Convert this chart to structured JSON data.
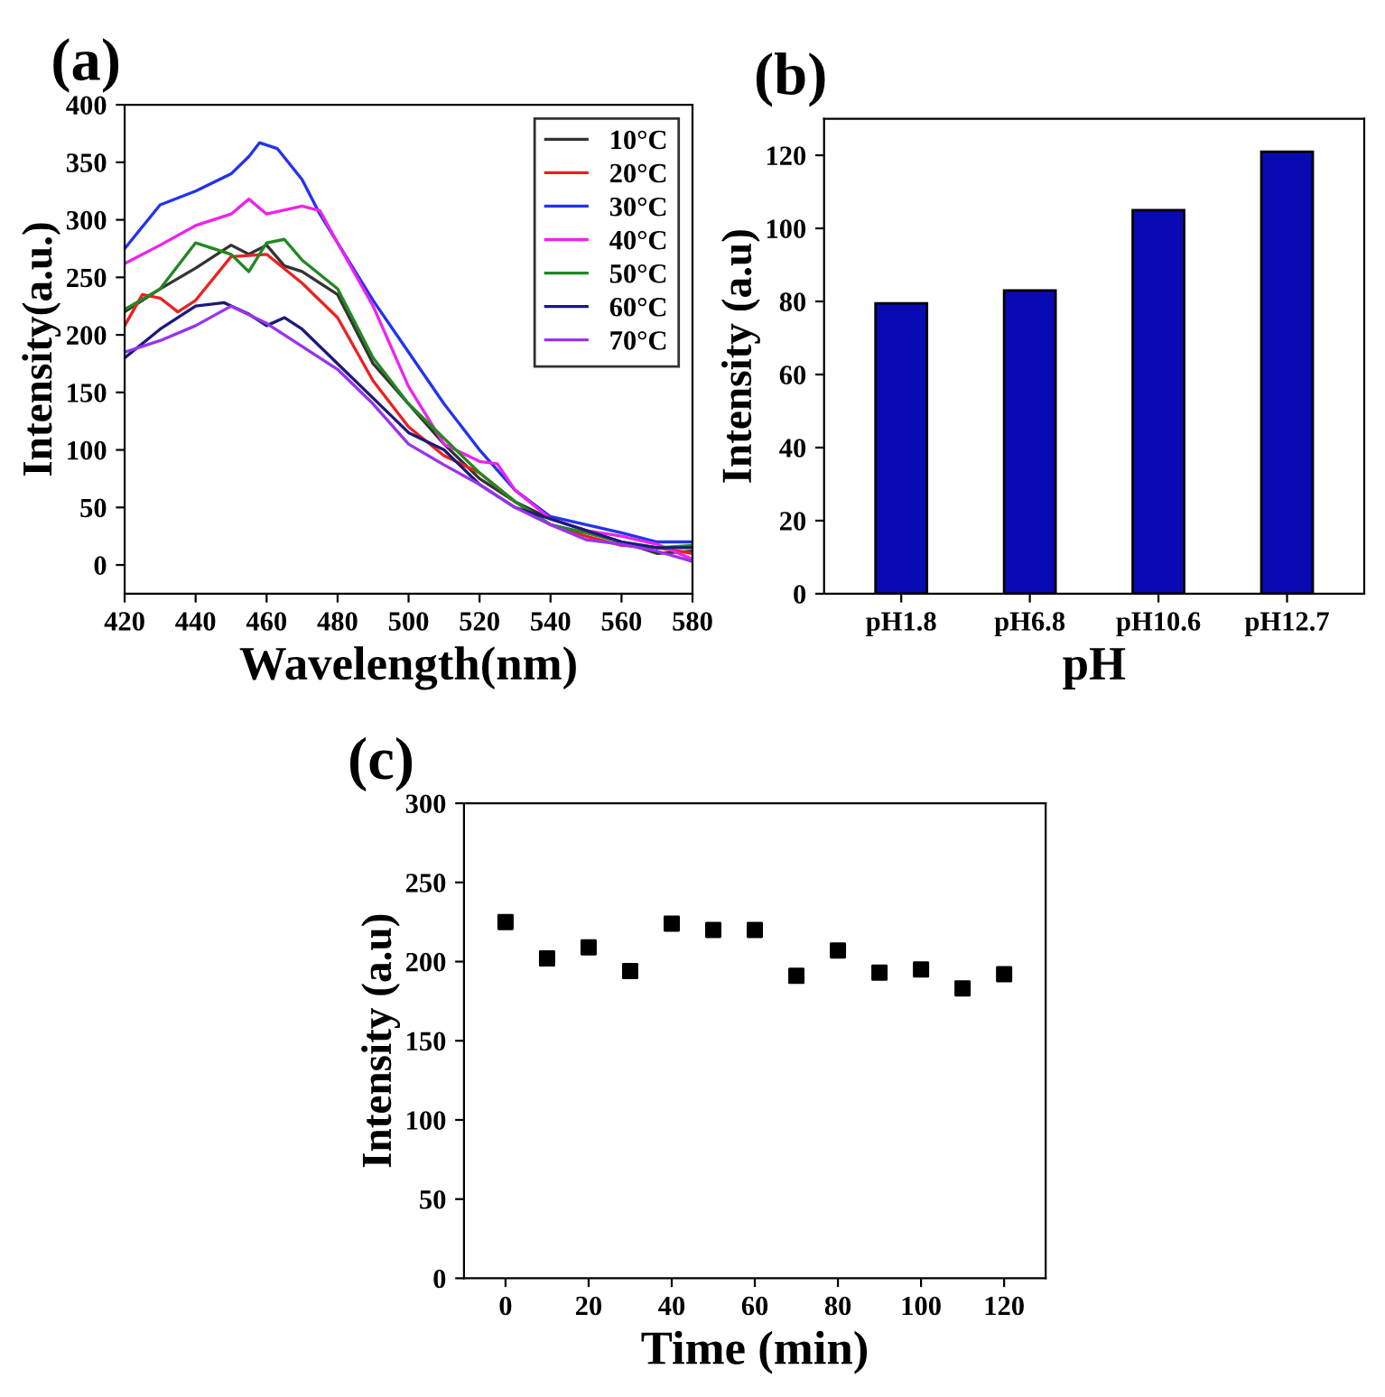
{
  "chart_data": [
    {
      "type": "line",
      "title": "(a)",
      "xlabel": "Wavelength(nm)",
      "ylabel": "Intensity(a.u.)",
      "xlim": [
        420,
        580
      ],
      "ylim": [
        -25,
        400
      ],
      "xticks": [
        420,
        440,
        460,
        480,
        500,
        520,
        540,
        560,
        580
      ],
      "yticks": [
        0,
        50,
        100,
        150,
        200,
        250,
        300,
        350,
        400
      ],
      "legend": "top right",
      "grid": false,
      "series": [
        {
          "name": "10°C",
          "color": "#333333",
          "x": [
            420,
            430,
            440,
            450,
            455,
            460,
            465,
            470,
            480,
            490,
            500,
            510,
            520,
            530,
            540,
            550,
            560,
            570,
            580
          ],
          "values": [
            220,
            240,
            258,
            278,
            270,
            278,
            260,
            255,
            235,
            175,
            140,
            105,
            75,
            55,
            40,
            30,
            20,
            10,
            12
          ]
        },
        {
          "name": "20°C",
          "color": "#ee2020",
          "x": [
            420,
            425,
            430,
            435,
            440,
            450,
            460,
            470,
            480,
            490,
            500,
            510,
            520,
            530,
            540,
            550,
            560,
            570,
            580
          ],
          "values": [
            208,
            235,
            232,
            220,
            230,
            268,
            270,
            245,
            215,
            160,
            120,
            95,
            80,
            55,
            35,
            25,
            17,
            15,
            10
          ]
        },
        {
          "name": "30°C",
          "color": "#2233ee",
          "x": [
            420,
            430,
            440,
            450,
            455,
            458,
            463,
            470,
            475,
            480,
            490,
            500,
            510,
            520,
            530,
            540,
            550,
            560,
            570,
            580
          ],
          "values": [
            275,
            313,
            325,
            340,
            355,
            367,
            362,
            335,
            305,
            280,
            230,
            185,
            140,
            100,
            65,
            42,
            35,
            28,
            20,
            20
          ]
        },
        {
          "name": "40°C",
          "color": "#ee22ee",
          "x": [
            420,
            430,
            440,
            450,
            455,
            460,
            470,
            475,
            480,
            490,
            500,
            510,
            520,
            525,
            530,
            540,
            550,
            560,
            570,
            580
          ],
          "values": [
            262,
            278,
            295,
            305,
            318,
            305,
            312,
            308,
            280,
            225,
            155,
            105,
            90,
            88,
            65,
            40,
            30,
            25,
            18,
            5
          ]
        },
        {
          "name": "50°C",
          "color": "#228822",
          "x": [
            420,
            430,
            440,
            450,
            455,
            460,
            465,
            470,
            480,
            490,
            500,
            510,
            520,
            530,
            540,
            550,
            560,
            570,
            580
          ],
          "values": [
            222,
            240,
            280,
            270,
            255,
            280,
            283,
            265,
            240,
            180,
            140,
            110,
            80,
            55,
            35,
            28,
            20,
            15,
            17
          ]
        },
        {
          "name": "60°C",
          "color": "#1a1a7a",
          "x": [
            420,
            430,
            440,
            448,
            455,
            460,
            465,
            470,
            480,
            490,
            500,
            510,
            520,
            530,
            540,
            550,
            560,
            570,
            580
          ],
          "values": [
            180,
            205,
            225,
            228,
            218,
            208,
            215,
            205,
            175,
            145,
            115,
            100,
            70,
            50,
            40,
            30,
            20,
            15,
            15
          ]
        },
        {
          "name": "70°C",
          "color": "#9933ee",
          "x": [
            420,
            430,
            440,
            450,
            460,
            470,
            480,
            490,
            500,
            510,
            520,
            530,
            540,
            550,
            560,
            570,
            580
          ],
          "values": [
            185,
            195,
            208,
            225,
            210,
            190,
            170,
            140,
            105,
            87,
            70,
            50,
            35,
            22,
            18,
            12,
            3
          ]
        }
      ]
    },
    {
      "type": "bar",
      "title": "(b)",
      "xlabel": "pH",
      "ylabel": "Intensity (a.u)",
      "categories": [
        "pH1.8",
        "pH6.8",
        "pH10.6",
        "pH12.7"
      ],
      "values": [
        79.5,
        83,
        105,
        121
      ],
      "color": "#0a0ab4",
      "ylim": [
        0,
        130
      ],
      "yticks": [
        0,
        20,
        40,
        60,
        80,
        100,
        120
      ],
      "grid": false
    },
    {
      "type": "scatter",
      "title": "(c)",
      "xlabel": "Time (min)",
      "ylabel": "Intensity (a.u)",
      "x": [
        0,
        10,
        20,
        30,
        40,
        50,
        60,
        70,
        80,
        90,
        100,
        110,
        120
      ],
      "values": [
        225,
        202,
        209,
        194,
        224,
        220,
        220,
        191,
        207,
        193,
        195,
        183,
        192
      ],
      "color": "#000000",
      "marker": "square",
      "xlim": [
        -10,
        130
      ],
      "ylim": [
        0,
        300
      ],
      "xticks": [
        0,
        20,
        40,
        60,
        80,
        100,
        120
      ],
      "yticks": [
        0,
        50,
        100,
        150,
        200,
        250,
        300
      ],
      "grid": false
    }
  ]
}
